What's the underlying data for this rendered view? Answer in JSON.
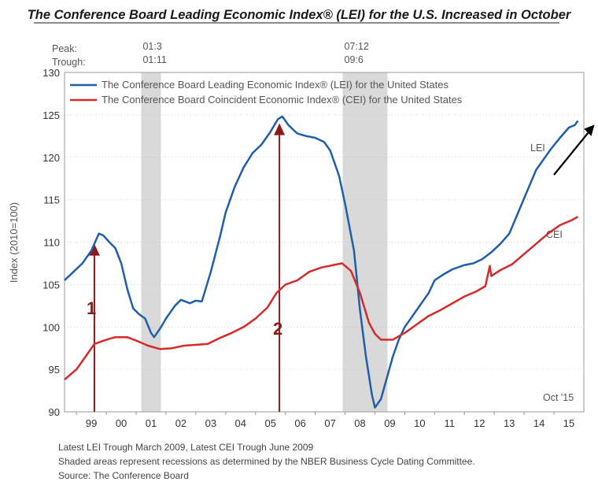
{
  "chart_data": {
    "type": "line",
    "title": "The Conference Board Leading Economic Index® (LEI) for the U.S. Increased in October",
    "ylabel": "Index (2010=100)",
    "xlabel": "",
    "ylim": [
      90,
      130
    ],
    "xlim": [
      1998.6,
      2016.0
    ],
    "y_ticks": [
      90,
      95,
      100,
      105,
      110,
      115,
      120,
      125,
      130
    ],
    "x_tick_labels": [
      "99",
      "00",
      "01",
      "02",
      "03",
      "04",
      "05",
      "06",
      "07",
      "08",
      "09",
      "10",
      "11",
      "12",
      "13",
      "14",
      "15"
    ],
    "grid": "horizontal",
    "legend_position": "top-left",
    "recession_bands": [
      {
        "peak": "01:3",
        "trough": "01:11",
        "start": 2001.17,
        "end": 2001.83
      },
      {
        "peak": "07:12",
        "trough": "09:6",
        "start": 2007.92,
        "end": 2009.42
      }
    ],
    "cycle_labels": {
      "peak": "Peak:",
      "trough": "Trough:"
    },
    "series": [
      {
        "name": "The Conference Board Leading Economic Index® (LEI) for the United States",
        "short_label": "LEI",
        "color": "#1f5fa8",
        "points": [
          [
            1998.6,
            105.5
          ],
          [
            1998.9,
            106.5
          ],
          [
            1999.2,
            107.5
          ],
          [
            1999.5,
            109.0
          ],
          [
            1999.75,
            111.0
          ],
          [
            1999.9,
            110.8
          ],
          [
            2000.1,
            110.0
          ],
          [
            2000.3,
            109.3
          ],
          [
            2000.5,
            107.5
          ],
          [
            2000.7,
            104.5
          ],
          [
            2000.9,
            102.2
          ],
          [
            2001.1,
            101.5
          ],
          [
            2001.3,
            101.0
          ],
          [
            2001.5,
            99.3
          ],
          [
            2001.6,
            98.8
          ],
          [
            2001.8,
            99.8
          ],
          [
            2002.0,
            101.0
          ],
          [
            2002.3,
            102.5
          ],
          [
            2002.5,
            103.2
          ],
          [
            2002.8,
            102.8
          ],
          [
            2003.0,
            103.1
          ],
          [
            2003.2,
            103.0
          ],
          [
            2003.5,
            106.5
          ],
          [
            2003.8,
            110.5
          ],
          [
            2004.0,
            113.5
          ],
          [
            2004.3,
            116.5
          ],
          [
            2004.6,
            118.8
          ],
          [
            2004.9,
            120.5
          ],
          [
            2005.2,
            121.5
          ],
          [
            2005.5,
            123.0
          ],
          [
            2005.75,
            124.5
          ],
          [
            2005.9,
            124.8
          ],
          [
            2006.1,
            123.8
          ],
          [
            2006.4,
            122.8
          ],
          [
            2006.7,
            122.5
          ],
          [
            2007.0,
            122.3
          ],
          [
            2007.3,
            121.8
          ],
          [
            2007.5,
            120.8
          ],
          [
            2007.8,
            117.8
          ],
          [
            2008.0,
            114.5
          ],
          [
            2008.3,
            109.0
          ],
          [
            2008.5,
            102.0
          ],
          [
            2008.7,
            96.5
          ],
          [
            2008.9,
            92.0
          ],
          [
            2009.0,
            90.5
          ],
          [
            2009.2,
            91.5
          ],
          [
            2009.4,
            94.0
          ],
          [
            2009.6,
            96.5
          ],
          [
            2009.8,
            98.5
          ],
          [
            2010.0,
            100.0
          ],
          [
            2010.3,
            101.5
          ],
          [
            2010.5,
            102.5
          ],
          [
            2010.8,
            104.0
          ],
          [
            2011.0,
            105.5
          ],
          [
            2011.3,
            106.2
          ],
          [
            2011.6,
            106.8
          ],
          [
            2012.0,
            107.3
          ],
          [
            2012.3,
            107.5
          ],
          [
            2012.6,
            108.0
          ],
          [
            2012.9,
            108.8
          ],
          [
            2013.2,
            109.8
          ],
          [
            2013.5,
            111.0
          ],
          [
            2013.8,
            113.5
          ],
          [
            2014.1,
            116.0
          ],
          [
            2014.4,
            118.5
          ],
          [
            2014.7,
            120.0
          ],
          [
            2014.9,
            121.0
          ],
          [
            2015.2,
            122.3
          ],
          [
            2015.5,
            123.5
          ],
          [
            2015.7,
            123.8
          ],
          [
            2015.8,
            124.3
          ]
        ]
      },
      {
        "name": "The Conference Board Coincident Economic Index® (CEI) for the United States",
        "short_label": "CEI",
        "color": "#d42a2a",
        "points": [
          [
            1998.6,
            93.8
          ],
          [
            1999.0,
            95.0
          ],
          [
            1999.3,
            96.5
          ],
          [
            1999.6,
            98.0
          ],
          [
            2000.0,
            98.5
          ],
          [
            2000.3,
            98.8
          ],
          [
            2000.7,
            98.8
          ],
          [
            2001.0,
            98.4
          ],
          [
            2001.4,
            97.8
          ],
          [
            2001.8,
            97.4
          ],
          [
            2002.2,
            97.5
          ],
          [
            2002.6,
            97.8
          ],
          [
            2003.0,
            97.9
          ],
          [
            2003.4,
            98.0
          ],
          [
            2003.8,
            98.7
          ],
          [
            2004.2,
            99.3
          ],
          [
            2004.6,
            100.0
          ],
          [
            2005.0,
            101.0
          ],
          [
            2005.4,
            102.3
          ],
          [
            2005.7,
            104.0
          ],
          [
            2006.0,
            105.0
          ],
          [
            2006.4,
            105.5
          ],
          [
            2006.8,
            106.5
          ],
          [
            2007.2,
            107.0
          ],
          [
            2007.6,
            107.3
          ],
          [
            2007.9,
            107.5
          ],
          [
            2008.2,
            106.6
          ],
          [
            2008.5,
            104.0
          ],
          [
            2008.8,
            100.5
          ],
          [
            2009.0,
            99.2
          ],
          [
            2009.2,
            98.5
          ],
          [
            2009.6,
            98.5
          ],
          [
            2010.0,
            99.3
          ],
          [
            2010.4,
            100.3
          ],
          [
            2010.8,
            101.3
          ],
          [
            2011.2,
            102.0
          ],
          [
            2011.6,
            102.8
          ],
          [
            2012.0,
            103.6
          ],
          [
            2012.4,
            104.2
          ],
          [
            2012.7,
            104.8
          ],
          [
            2012.85,
            107.2
          ],
          [
            2012.9,
            106.0
          ],
          [
            2013.2,
            106.7
          ],
          [
            2013.6,
            107.4
          ],
          [
            2014.0,
            108.6
          ],
          [
            2014.4,
            109.8
          ],
          [
            2014.8,
            111.0
          ],
          [
            2015.2,
            112.0
          ],
          [
            2015.6,
            112.6
          ],
          [
            2015.8,
            113.0
          ]
        ]
      }
    ],
    "annotations": [
      {
        "text": "1",
        "x": 1999.6,
        "y": 109.8,
        "color": "#8b1a1a"
      },
      {
        "text": "2",
        "x": 2005.8,
        "y": 124.0,
        "color": "#8b1a1a"
      },
      {
        "text": "Oct '15",
        "position": "bottom-right"
      }
    ],
    "footnotes": [
      "Latest LEI Trough March 2009, Latest CEI Trough June 2009",
      "Shaded areas represent recessions as determined by the NBER Business Cycle Dating Committee.",
      "Source: The Conference Board"
    ]
  }
}
